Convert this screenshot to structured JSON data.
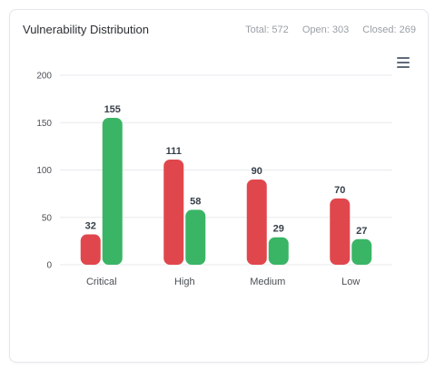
{
  "card": {
    "title": "Vulnerability Distribution",
    "stats": {
      "total": "Total: 572",
      "open": "Open: 303",
      "closed": "Closed: 269"
    },
    "menu_icon": "hamburger-menu-icon"
  },
  "colors": {
    "open": "#e0474c",
    "closed": "#3ab566",
    "grid": "#e8eaed"
  },
  "chart_data": {
    "type": "bar",
    "categories": [
      "Critical",
      "High",
      "Medium",
      "Low"
    ],
    "series": [
      {
        "values": [
          32,
          111,
          90,
          70
        ]
      },
      {
        "values": [
          155,
          58,
          29,
          27
        ]
      }
    ],
    "ylim": [
      0,
      200
    ],
    "yticks": [
      0,
      50,
      100,
      150,
      200
    ],
    "grid": true
  }
}
